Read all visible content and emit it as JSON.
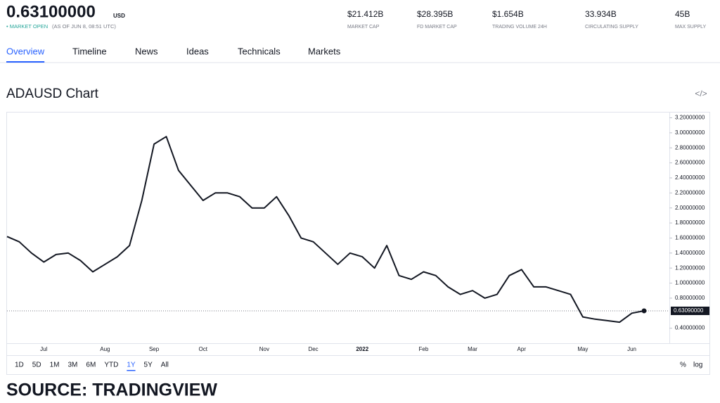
{
  "header": {
    "price": "0.63100000",
    "currency": "USD",
    "status": "• MARKET OPEN",
    "as_of": "(AS OF JUN 8, 08:51 UTC)",
    "stats": [
      {
        "value": "$21.412B",
        "label": "MARKET CAP"
      },
      {
        "value": "$28.395B",
        "label": "FD MARKET CAP"
      },
      {
        "value": "$1.654B",
        "label": "TRADING VOLUME 24H"
      },
      {
        "value": "33.934B",
        "label": "CIRCULATING SUPPLY"
      },
      {
        "value": "45B",
        "label": "MAX SUPPLY"
      }
    ]
  },
  "tabs": [
    "Overview",
    "Timeline",
    "News",
    "Ideas",
    "Technicals",
    "Markets"
  ],
  "active_tab": 0,
  "chart_data": {
    "type": "line",
    "title": "ADAUSD Chart",
    "embed_icon": "</>",
    "categories": [
      null,
      null,
      null,
      "Jul",
      null,
      null,
      null,
      null,
      "Aug",
      null,
      null,
      null,
      "Sep",
      null,
      null,
      null,
      "Oct",
      null,
      null,
      null,
      null,
      "Nov",
      null,
      null,
      null,
      "Dec",
      null,
      null,
      null,
      "2022",
      null,
      null,
      null,
      null,
      "Feb",
      null,
      null,
      null,
      "Mar",
      null,
      null,
      null,
      "Apr",
      null,
      null,
      null,
      null,
      "May",
      null,
      null,
      null,
      "Jun",
      null
    ],
    "values": [
      1.62,
      1.55,
      1.4,
      1.28,
      1.38,
      1.4,
      1.3,
      1.15,
      1.25,
      1.35,
      1.5,
      2.1,
      2.85,
      2.95,
      2.5,
      2.3,
      2.1,
      2.2,
      2.2,
      2.15,
      2.0,
      2.0,
      2.15,
      1.9,
      1.6,
      1.55,
      1.4,
      1.25,
      1.4,
      1.35,
      1.2,
      1.5,
      1.1,
      1.05,
      1.15,
      1.1,
      0.95,
      0.85,
      0.9,
      0.8,
      0.85,
      1.1,
      1.18,
      0.95,
      0.95,
      0.9,
      0.85,
      0.55,
      0.52,
      0.5,
      0.48,
      0.6,
      0.631
    ],
    "color": "#131722",
    "ylim": [
      0.2,
      3.27
    ],
    "yticks": [
      {
        "value": 0.4,
        "label": "0.40000000"
      },
      {
        "value": 0.8,
        "label": "0.80000000"
      },
      {
        "value": 1.0,
        "label": "1.00000000"
      },
      {
        "value": 1.2,
        "label": "1.20000000"
      },
      {
        "value": 1.4,
        "label": "1.40000000"
      },
      {
        "value": 1.6,
        "label": "1.60000000"
      },
      {
        "value": 1.8,
        "label": "1.80000000"
      },
      {
        "value": 2.0,
        "label": "2.00000000"
      },
      {
        "value": 2.2,
        "label": "2.20000000"
      },
      {
        "value": 2.4,
        "label": "2.40000000"
      },
      {
        "value": 2.6,
        "label": "2.60000000"
      },
      {
        "value": 2.8,
        "label": "2.80000000"
      },
      {
        "value": 3.0,
        "label": "3.00000000"
      },
      {
        "value": 3.2,
        "label": "3.20000000"
      }
    ],
    "price_line": {
      "value": 0.6309,
      "label": "0.63090000"
    },
    "ranges": [
      "1D",
      "5D",
      "1M",
      "3M",
      "6M",
      "YTD",
      "1Y",
      "5Y",
      "All"
    ],
    "active_range": 6,
    "scale_options": [
      "%",
      "log"
    ]
  },
  "source": "SOURCE: TRADINGVIEW"
}
